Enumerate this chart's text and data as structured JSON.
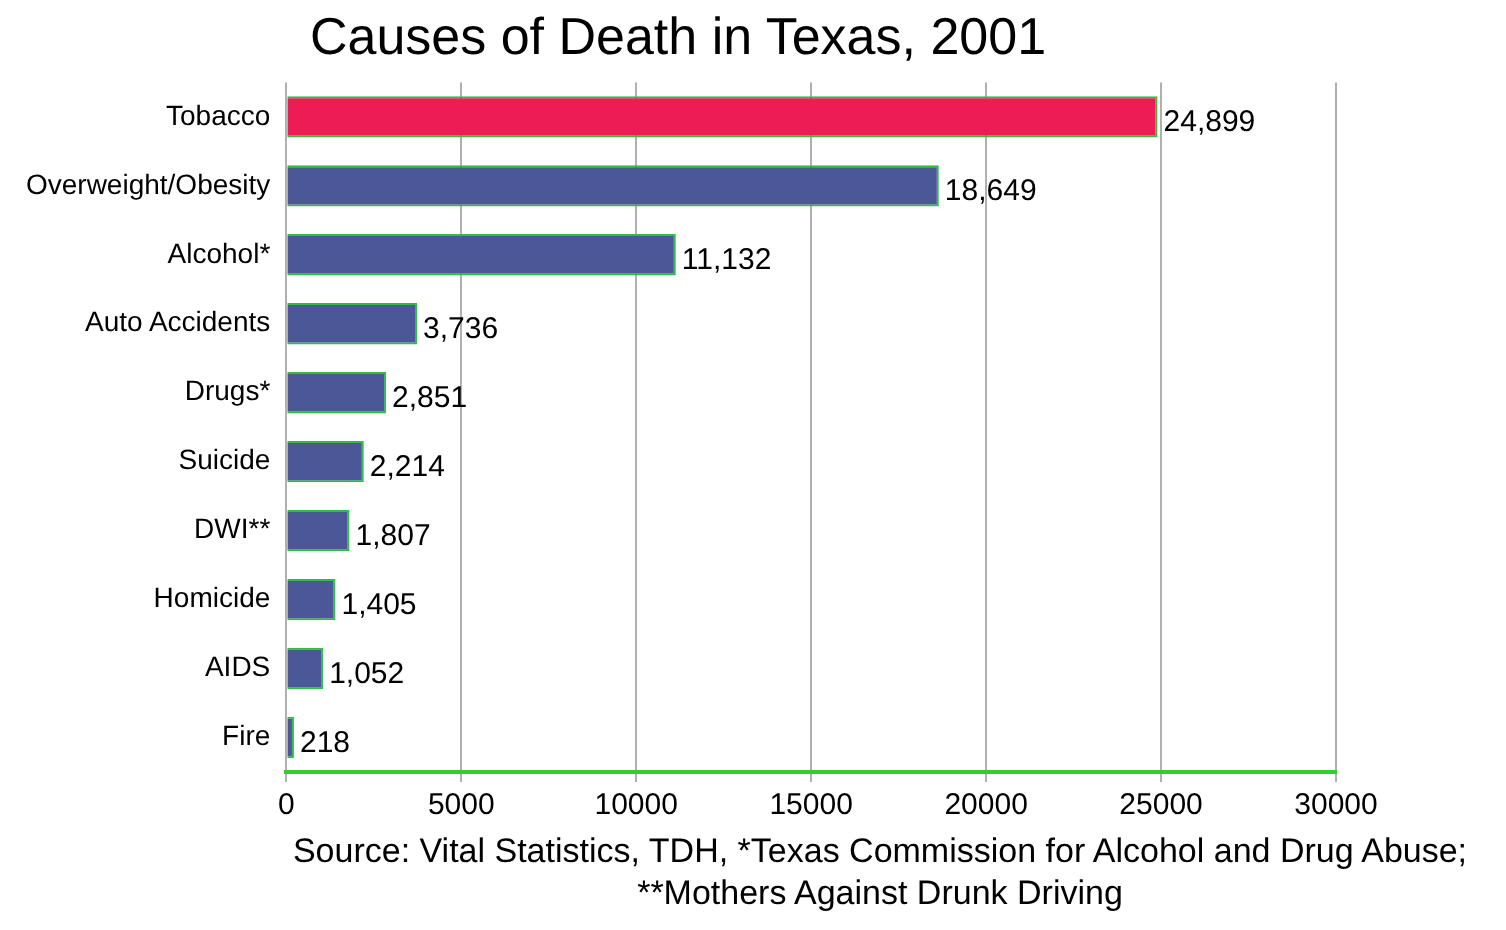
{
  "chart_data": {
    "type": "bar",
    "orientation": "horizontal",
    "title": "Causes of Death in Texas, 2001",
    "categories": [
      "Tobacco",
      "Overweight/Obesity",
      "Alcohol*",
      "Auto Accidents",
      "Drugs*",
      "Suicide",
      "DWI**",
      "Homicide",
      "AIDS",
      "Fire"
    ],
    "values": [
      24899,
      18649,
      11132,
      3736,
      2851,
      2214,
      1807,
      1405,
      1052,
      218
    ],
    "value_labels": [
      "24,899",
      "18,649",
      "11,132",
      "3,736",
      "2,851",
      "2,214",
      "1,807",
      "1,405",
      "1,052",
      "218"
    ],
    "colors": [
      "#ee1c55",
      "#4b5796",
      "#4b5796",
      "#4b5796",
      "#4b5796",
      "#4b5796",
      "#4b5796",
      "#4b5796",
      "#4b5796",
      "#4b5796"
    ],
    "xlim": [
      0,
      30000
    ],
    "xticks": [
      0,
      5000,
      10000,
      15000,
      20000,
      25000,
      30000
    ],
    "grid": "x",
    "legend": false,
    "annotations": [
      "Source: Vital Statistics, TDH, *Texas Commission for Alcohol and Drug Abuse; **Mothers Against Drunk Driving"
    ]
  }
}
